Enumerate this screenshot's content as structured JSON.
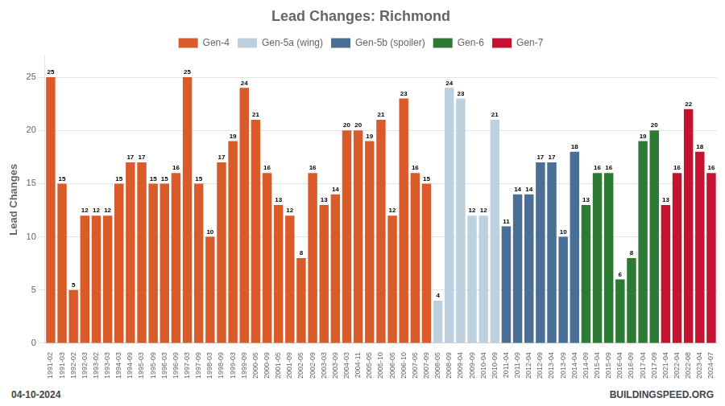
{
  "chart_data": {
    "type": "bar",
    "title": "Lead Changes: Richmond",
    "y_label": "Lead Changes",
    "annotations": [
      "04-10-2024",
      "BUILDINGSPEED.ORG"
    ],
    "categories": [
      "1991-02",
      "1991-03",
      "1992-02",
      "1992-03",
      "1993-02",
      "1993-03",
      "1994-03",
      "1994-09",
      "1995-03",
      "1995-09",
      "1996-03",
      "1996-09",
      "1997-03",
      "1997-09",
      "1998-03",
      "1998-09",
      "1999-03",
      "1999-09",
      "2000-05",
      "2000-09",
      "2001-05",
      "2001-09",
      "2002-05",
      "2002-09",
      "2003-03",
      "2003-09",
      "2004-03",
      "2004-11",
      "2005-05",
      "2005-10",
      "2006-05",
      "2006-10",
      "2007-05",
      "2007-09",
      "2008-05",
      "2008-09",
      "2009-04",
      "2009-09",
      "2010-04",
      "2010-09",
      "2011-04",
      "2011-09",
      "2012-04",
      "2012-09",
      "2013-04",
      "2013-09",
      "2014-04",
      "2014-09",
      "2015-04",
      "2015-09",
      "2016-04",
      "2016-09",
      "2017-04",
      "2017-09",
      "2021-04",
      "2022-04",
      "2022-08",
      "2023-04",
      "2024-07"
    ],
    "series": [
      {
        "name": "Gen-4",
        "color": "#D95B2A",
        "values": [
          25,
          15,
          5,
          12,
          12,
          12,
          15,
          17,
          17,
          15,
          15,
          16,
          25,
          15,
          10,
          17,
          19,
          24,
          21,
          16,
          13,
          12,
          8,
          16,
          13,
          14,
          20,
          20,
          19,
          21,
          12,
          23,
          16,
          15,
          null,
          null,
          null,
          null,
          null,
          null,
          null,
          null,
          null,
          null,
          null,
          null,
          null,
          null,
          null,
          null,
          null,
          null,
          null,
          null,
          null,
          null,
          null,
          null,
          null
        ]
      },
      {
        "name": "Gen-5a (wing)",
        "color": "#BDD0E0",
        "values": [
          null,
          null,
          null,
          null,
          null,
          null,
          null,
          null,
          null,
          null,
          null,
          null,
          null,
          null,
          null,
          null,
          null,
          null,
          null,
          null,
          null,
          null,
          null,
          null,
          null,
          null,
          null,
          null,
          null,
          null,
          null,
          null,
          null,
          null,
          4,
          24,
          23,
          12,
          12,
          21,
          null,
          null,
          null,
          null,
          null,
          null,
          null,
          null,
          null,
          null,
          null,
          null,
          null,
          null,
          null,
          null,
          null,
          null,
          null
        ]
      },
      {
        "name": "Gen-5b (spoiler)",
        "color": "#4A6F96",
        "values": [
          null,
          null,
          null,
          null,
          null,
          null,
          null,
          null,
          null,
          null,
          null,
          null,
          null,
          null,
          null,
          null,
          null,
          null,
          null,
          null,
          null,
          null,
          null,
          null,
          null,
          null,
          null,
          null,
          null,
          null,
          null,
          null,
          null,
          null,
          null,
          null,
          null,
          null,
          null,
          null,
          11,
          14,
          14,
          17,
          17,
          10,
          18,
          null,
          null,
          null,
          null,
          null,
          null,
          null,
          null,
          null,
          null,
          null,
          null
        ]
      },
      {
        "name": "Gen-6",
        "color": "#2D7A35",
        "values": [
          null,
          null,
          null,
          null,
          null,
          null,
          null,
          null,
          null,
          null,
          null,
          null,
          null,
          null,
          null,
          null,
          null,
          null,
          null,
          null,
          null,
          null,
          null,
          null,
          null,
          null,
          null,
          null,
          null,
          null,
          null,
          null,
          null,
          null,
          null,
          null,
          null,
          null,
          null,
          null,
          null,
          null,
          null,
          null,
          null,
          null,
          null,
          13,
          16,
          16,
          6,
          8,
          19,
          20,
          null,
          null,
          null,
          null,
          null
        ]
      },
      {
        "name": "Gen-7",
        "color": "#C41230",
        "values": [
          null,
          null,
          null,
          null,
          null,
          null,
          null,
          null,
          null,
          null,
          null,
          null,
          null,
          null,
          null,
          null,
          null,
          null,
          null,
          null,
          null,
          null,
          null,
          null,
          null,
          null,
          null,
          null,
          null,
          null,
          null,
          null,
          null,
          null,
          null,
          null,
          null,
          null,
          null,
          null,
          null,
          null,
          null,
          null,
          null,
          null,
          null,
          null,
          null,
          null,
          null,
          null,
          null,
          null,
          13,
          16,
          22,
          18,
          16
        ]
      }
    ],
    "stacked": true,
    "ylim": [
      0,
      27
    ],
    "yticks": [
      0,
      5,
      10,
      15,
      20,
      25
    ],
    "grid": true,
    "legend": "top",
    "data_labels": true
  }
}
